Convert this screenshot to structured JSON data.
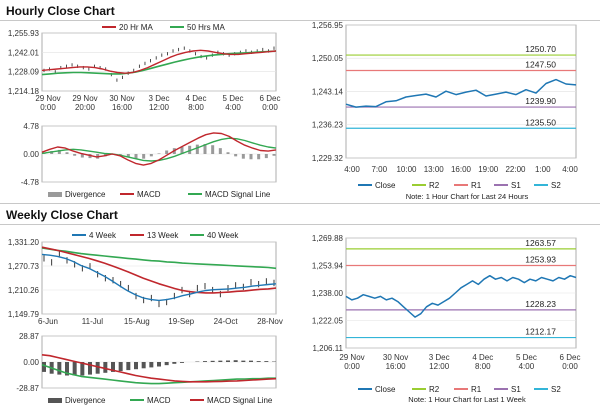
{
  "sections": {
    "hourly": "Hourly Close Chart",
    "weekly": "Weekly Close Chart"
  },
  "colors": {
    "price": "#222222",
    "ma_red": "#c0272d",
    "ma_green": "#33a852",
    "close": "#1f77b4",
    "r2": "#9acd32",
    "r1": "#e87878",
    "s1": "#9b72b0",
    "s2": "#33b5d8",
    "divergence": "#9a9a9a"
  },
  "chart_data": [
    {
      "id": "hourly-price",
      "type": "line",
      "legend": [
        "20 Hr MA",
        "50 Hrs MA"
      ],
      "yticks": [
        "1,255.93",
        "1,242.01",
        "1,228.09",
        "1,214.18"
      ],
      "ylim": [
        1214.18,
        1255.93
      ],
      "xticks": [
        [
          "29 Nov",
          "0:00"
        ],
        [
          "29 Nov",
          "20:00"
        ],
        [
          "30 Nov",
          "16:00"
        ],
        [
          "3 Dec",
          "12:00"
        ],
        [
          "4 Dec",
          "8:00"
        ],
        [
          "5 Dec",
          "4:00"
        ],
        [
          "6 Dec",
          "0:00"
        ]
      ],
      "price": [
        1229,
        1230,
        1228,
        1231,
        1232,
        1233,
        1232,
        1231,
        1230,
        1232,
        1231,
        1230,
        1226,
        1222,
        1224,
        1227,
        1229,
        1232,
        1234,
        1236,
        1238,
        1240,
        1241,
        1243,
        1244,
        1245,
        1243,
        1241,
        1239,
        1238,
        1240,
        1242,
        1241,
        1240,
        1241,
        1242,
        1243,
        1242,
        1243,
        1244,
        1243,
        1245
      ],
      "ma20": [
        1229,
        1229.5,
        1230,
        1230.5,
        1231,
        1231.5,
        1231.5,
        1231,
        1230,
        1228.5,
        1227.5,
        1227,
        1227.5,
        1229,
        1231,
        1233.5,
        1236,
        1238.5,
        1240.5,
        1242,
        1243,
        1243.5,
        1243,
        1242,
        1241,
        1240.5,
        1240.5,
        1241,
        1241.5,
        1242,
        1242.5,
        1243
      ],
      "ma50": [
        1226,
        1226.5,
        1227,
        1227.3,
        1227.5,
        1227.5,
        1227.3,
        1227,
        1226.7,
        1226.5,
        1226.5,
        1227,
        1227.8,
        1229,
        1230.5,
        1232,
        1233.5,
        1235,
        1236.3,
        1237.5,
        1238.5,
        1239.3,
        1240,
        1240.5,
        1241,
        1241.3,
        1241.6,
        1242,
        1242.3,
        1242.6,
        1243
      ]
    },
    {
      "id": "hourly-macd",
      "type": "line",
      "yticks": [
        "4.78",
        "0.00",
        "-4.78"
      ],
      "ylim": [
        -4.78,
        4.78
      ],
      "legend": [
        "Divergence",
        "MACD",
        "MACD Signal Line"
      ],
      "macd": [
        0.3,
        0.8,
        1.2,
        1.0,
        0.5,
        0.1,
        -0.2,
        -0.5,
        -0.3,
        0,
        -0.3,
        -1.0,
        -1.6,
        -1.9,
        -1.6,
        -1.0,
        -0.2,
        0.6,
        1.3,
        2.0,
        2.7,
        3.3,
        3.6,
        3.5,
        3.0,
        2.2,
        1.5,
        1.0,
        0.6,
        0.5,
        0.7
      ],
      "signal": [
        0.1,
        0.3,
        0.5,
        0.7,
        0.8,
        0.7,
        0.5,
        0.3,
        0.1,
        0,
        -0.2,
        -0.5,
        -0.8,
        -1.1,
        -1.2,
        -1.1,
        -0.8,
        -0.4,
        0.1,
        0.6,
        1.1,
        1.6,
        2.1,
        2.5,
        2.7,
        2.6,
        2.3,
        1.9,
        1.5,
        1.2,
        1.0
      ],
      "divergence": [
        0.2,
        0.5,
        0.7,
        0.3,
        -0.3,
        -0.6,
        -0.7,
        -0.8,
        -0.4,
        0,
        -0.1,
        -0.5,
        -0.8,
        -0.8,
        -0.4,
        0.1,
        0.6,
        1.0,
        1.2,
        1.4,
        1.6,
        1.7,
        1.5,
        1.0,
        0.3,
        -0.4,
        -0.8,
        -0.9,
        -0.9,
        -0.7,
        -0.3
      ]
    },
    {
      "id": "hourly-levels",
      "type": "line",
      "yticks": [
        "1,256.95",
        "1,250.05",
        "1,243.14",
        "1,236.23",
        "1,229.32"
      ],
      "ylim": [
        1229.32,
        1256.95
      ],
      "xticks": [
        "4:00",
        "7:00",
        "10:00",
        "13:00",
        "16:00",
        "19:00",
        "22:00",
        "1:00",
        "4:00"
      ],
      "close": [
        1240.5,
        1239.9,
        1240.1,
        1240.0,
        1241.0,
        1241.2,
        1242.0,
        1242.3,
        1242.6,
        1242.0,
        1243.2,
        1242.5,
        1243.0,
        1243.4,
        1242.2,
        1242.6,
        1243.0,
        1242.5,
        1243.5,
        1242.8,
        1244.8,
        1245.6,
        1244.7,
        1244.5
      ],
      "levels": [
        {
          "label": "R2",
          "value": 1250.7,
          "display": "1250.70"
        },
        {
          "label": "R1",
          "value": 1247.5,
          "display": "1247.50"
        },
        {
          "label": "S1",
          "value": 1239.9,
          "display": "1239.90"
        },
        {
          "label": "S2",
          "value": 1235.5,
          "display": "1235.50"
        }
      ],
      "legend": [
        "Close",
        "R2",
        "R1",
        "S1",
        "S2"
      ],
      "note": "Note: 1 Hour Chart for Last 24 Hours"
    },
    {
      "id": "weekly-price",
      "type": "line",
      "legend": [
        "4 Week",
        "13 Week",
        "40 Week"
      ],
      "yticks": [
        "1,331.20",
        "1,270.73",
        "1,210.26",
        "1,149.79"
      ],
      "ylim": [
        1149.79,
        1331.2
      ],
      "xticks": [
        "6-Jun",
        "11-Jul",
        "15-Aug",
        "19-Sep",
        "24-Oct",
        "28-Nov"
      ],
      "price": [
        1290,
        1280,
        1300,
        1285,
        1275,
        1265,
        1270,
        1250,
        1240,
        1235,
        1225,
        1215,
        1195,
        1185,
        1190,
        1175,
        1180,
        1195,
        1210,
        1200,
        1215,
        1220,
        1210,
        1200,
        1215,
        1222,
        1218,
        1230,
        1225,
        1232,
        1228
      ],
      "wk4": [
        1300,
        1298,
        1295,
        1290,
        1282,
        1272,
        1265,
        1255,
        1245,
        1233,
        1220,
        1208,
        1198,
        1190,
        1186,
        1184,
        1186,
        1190,
        1196,
        1200,
        1205,
        1209,
        1211,
        1212,
        1213,
        1215,
        1217,
        1220,
        1222,
        1224,
        1226
      ],
      "wk13": [
        1318,
        1314,
        1310,
        1305,
        1300,
        1295,
        1290,
        1284,
        1278,
        1271,
        1264,
        1256,
        1248,
        1240,
        1233,
        1226,
        1220,
        1214,
        1209,
        1206,
        1204,
        1203,
        1203,
        1204,
        1205,
        1207,
        1208,
        1210,
        1212,
        1213,
        1215
      ],
      "wk40": [
        1316,
        1313,
        1310,
        1308,
        1305,
        1302,
        1300,
        1298,
        1296,
        1294,
        1292,
        1290,
        1288,
        1286,
        1284,
        1283,
        1281,
        1280,
        1278,
        1277,
        1276,
        1275,
        1274,
        1273,
        1272,
        1271,
        1270,
        1269,
        1268,
        1267,
        1265
      ]
    },
    {
      "id": "weekly-macd",
      "type": "line",
      "yticks": [
        "28.87",
        "0.00",
        "-28.87"
      ],
      "ylim": [
        -28.87,
        28.87
      ],
      "legend": [
        "Divergence",
        "MACD",
        "MACD Signal Line"
      ],
      "macd": [
        -3,
        -6,
        -9,
        -12,
        -14,
        -16,
        -17,
        -18,
        -19,
        -20,
        -21,
        -22,
        -23,
        -23.5,
        -24,
        -24,
        -23.5,
        -23,
        -22.5,
        -22,
        -21.5,
        -21,
        -20.5,
        -20,
        -19.5,
        -19,
        -19,
        -18.5,
        -18.5,
        -18,
        -18
      ],
      "signal": [
        8,
        7,
        5,
        3,
        1,
        -1,
        -3,
        -5,
        -7,
        -9,
        -11,
        -13,
        -15,
        -16.5,
        -18,
        -19,
        -20,
        -21,
        -21.5,
        -22,
        -22,
        -22,
        -21.8,
        -21.5,
        -21.2,
        -21,
        -20.5,
        -20,
        -19.5,
        -19,
        -18.5
      ],
      "divergence": [
        -11,
        -13,
        -14,
        -15,
        -15,
        -15,
        -14,
        -13,
        -12,
        -11,
        -10,
        -9,
        -8,
        -7,
        -6,
        -5,
        -3.5,
        -2,
        -1,
        0,
        0.5,
        1,
        1.3,
        1.5,
        1.7,
        2,
        1.5,
        1.5,
        1,
        1,
        0.5
      ]
    },
    {
      "id": "weekly-levels",
      "type": "line",
      "yticks": [
        "1,269.88",
        "1,253.94",
        "1,238.00",
        "1,222.05",
        "1,206.11"
      ],
      "ylim": [
        1206.11,
        1269.88
      ],
      "xticks": [
        [
          "29 Nov",
          "0:00"
        ],
        [
          "30 Nov",
          "16:00"
        ],
        [
          "3 Dec",
          "12:00"
        ],
        [
          "4 Dec",
          "8:00"
        ],
        [
          "5 Dec",
          "4:00"
        ],
        [
          "6 Dec",
          "0:00"
        ]
      ],
      "close": [
        1236,
        1234,
        1235,
        1237,
        1236,
        1235,
        1236,
        1234,
        1235,
        1233,
        1230,
        1227,
        1224,
        1226,
        1230,
        1232,
        1231,
        1233,
        1235,
        1238,
        1241,
        1243,
        1245,
        1243,
        1246,
        1248,
        1246,
        1247,
        1245,
        1247,
        1246,
        1244,
        1246,
        1245,
        1247,
        1246,
        1245,
        1247,
        1246,
        1248,
        1247
      ],
      "levels": [
        {
          "label": "R2",
          "value": 1263.57,
          "display": "1263.57"
        },
        {
          "label": "R1",
          "value": 1253.93,
          "display": "1253.93"
        },
        {
          "label": "S1",
          "value": 1228.23,
          "display": "1228.23"
        },
        {
          "label": "S2",
          "value": 1212.17,
          "display": "1212.17"
        }
      ],
      "legend": [
        "Close",
        "R2",
        "R1",
        "S1",
        "S2"
      ],
      "note": "Note: 1 Hour Chart for Last 1 Week"
    }
  ]
}
